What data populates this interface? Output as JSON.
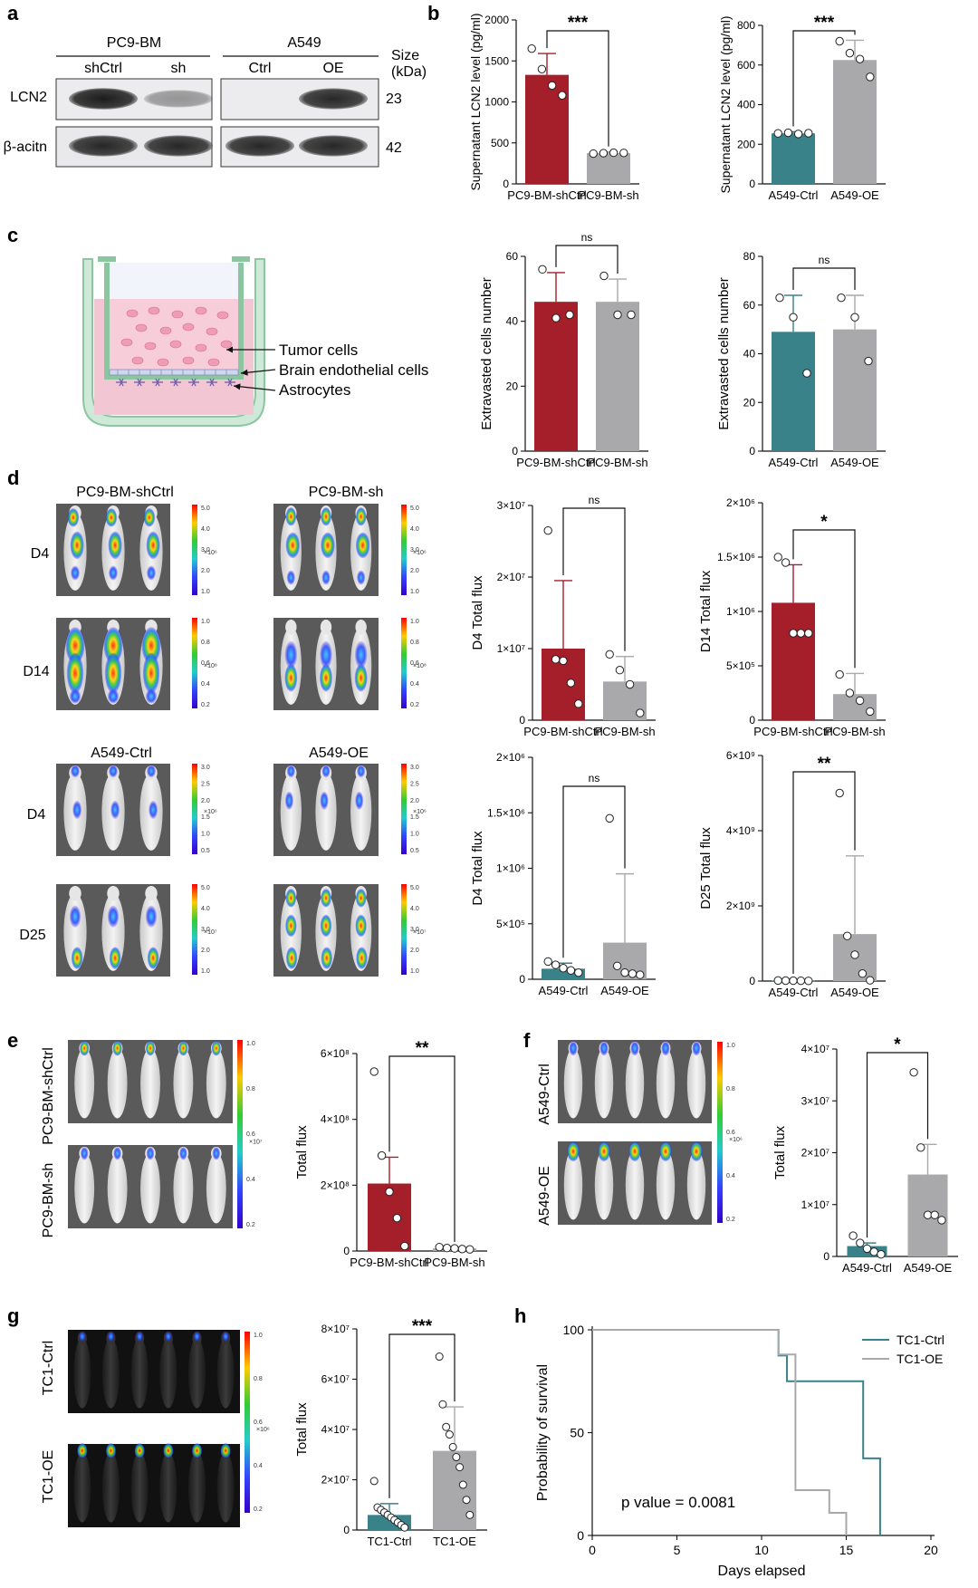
{
  "colors": {
    "red": "#a41f2a",
    "teal": "#3a828a",
    "gray": "#a9a9ab",
    "bluetint": "#dfe3f2",
    "pinktint": "#f2c9d6",
    "frame": "#9dd1b0"
  },
  "panels": {
    "a": {
      "letter": "a",
      "group1": "PC9-BM",
      "group2": "A549",
      "lanes": [
        "shCtrl",
        "sh",
        "Ctrl",
        "OE"
      ],
      "size_header": "Size\n(kDa)",
      "bands": [
        {
          "name": "LCN2",
          "size": "23",
          "intensity": [
            0.95,
            0.4,
            0.0,
            0.9
          ]
        },
        {
          "name": "β-acitn",
          "size": "42",
          "intensity": [
            0.9,
            0.9,
            0.9,
            0.9
          ]
        }
      ]
    },
    "b": {
      "letter": "b"
    },
    "c": {
      "letter": "c",
      "labels": [
        "Tumor cells",
        "Brain endothelial cells",
        "Astrocytes"
      ]
    },
    "d": {
      "letter": "d",
      "group_titles": [
        "PC9-BM-shCtrl",
        "PC9-BM-sh",
        "A549-Ctrl",
        "A549-OE"
      ],
      "row_labels": [
        "D4",
        "D14",
        "D4",
        "D25"
      ],
      "scales": [
        {
          "ticks": [
            "5.0",
            "4.0",
            "3.0",
            "2.0",
            "1.0"
          ],
          "unit": "×10⁶"
        },
        {
          "ticks": [
            "1.0",
            "0.8",
            "0.6",
            "0.4",
            "0.2"
          ],
          "unit": "×10⁸"
        },
        {
          "ticks": [
            "3.0",
            "2.5",
            "2.0",
            "1.5",
            "1.0",
            "0.5"
          ],
          "unit": "×10⁶"
        },
        {
          "ticks": [
            "5.0",
            "4.0",
            "3.0",
            "2.0",
            "1.0"
          ],
          "unit": "×10⁷"
        }
      ]
    },
    "e": {
      "letter": "e",
      "rows": [
        "PC9-BM-shCtrl",
        "PC9-BM-sh"
      ],
      "scale": {
        "ticks": [
          "1.0",
          "0.8",
          "0.6",
          "0.4",
          "0.2"
        ],
        "unit": "×10⁷"
      }
    },
    "f": {
      "letter": "f",
      "rows": [
        "A549-Ctrl",
        "A549-OE"
      ],
      "scale": {
        "ticks": [
          "1.0",
          "0.8",
          "0.6",
          "0.4",
          "0.2"
        ],
        "unit": "×10⁶"
      }
    },
    "g": {
      "letter": "g",
      "rows": [
        "TC1-Ctrl",
        "TC1-OE"
      ],
      "scale": {
        "ticks": [
          "1.0",
          "0.8",
          "0.6",
          "0.4",
          "0.2"
        ],
        "unit": "×10⁶"
      }
    },
    "h": {
      "letter": "h"
    }
  },
  "chart_data": [
    {
      "id": "b1",
      "type": "bar",
      "ylabel": "Supernatant LCN2 level (pg/ml)",
      "categories": [
        "PC9-BM-shCtrl",
        "PC9-BM-sh"
      ],
      "values": [
        1330,
        375
      ],
      "errors": [
        260,
        15
      ],
      "points": [
        [
          1650,
          1400,
          1200,
          1080
        ],
        [
          370,
          375,
          380,
          378
        ]
      ],
      "colors": [
        "red",
        "gray"
      ],
      "ylim": [
        0,
        2000
      ],
      "ticks": [
        0,
        500,
        1000,
        1500,
        2000
      ],
      "tick_labels": [
        "0",
        "500",
        "1000",
        "1500",
        "2000"
      ],
      "significance": "***"
    },
    {
      "id": "b2",
      "type": "bar",
      "ylabel": "Supernatant LCN2 level (pg/ml)",
      "categories": [
        "A549-Ctrl",
        "A549-OE"
      ],
      "values": [
        255,
        625
      ],
      "errors": [
        8,
        100
      ],
      "points": [
        [
          255,
          258,
          252,
          256
        ],
        [
          720,
          660,
          630,
          540
        ]
      ],
      "colors": [
        "teal",
        "gray"
      ],
      "ylim": [
        0,
        800
      ],
      "ticks": [
        0,
        200,
        400,
        600,
        800
      ],
      "tick_labels": [
        "0",
        "200",
        "400",
        "600",
        "800"
      ],
      "significance": "***"
    },
    {
      "id": "c1",
      "type": "bar",
      "ylabel": "Extravasted cells number",
      "categories": [
        "PC9-BM-shCtrl",
        "PC9-BM-sh"
      ],
      "values": [
        46,
        46
      ],
      "errors": [
        9,
        7
      ],
      "points": [
        [
          56,
          41,
          42
        ],
        [
          54,
          42,
          42
        ]
      ],
      "colors": [
        "red",
        "gray"
      ],
      "ylim": [
        0,
        60
      ],
      "ticks": [
        0,
        20,
        40,
        60
      ],
      "tick_labels": [
        "0",
        "20",
        "40",
        "60"
      ],
      "significance": "ns"
    },
    {
      "id": "c2",
      "type": "bar",
      "ylabel": "Extravasted cells number",
      "categories": [
        "A549-Ctrl",
        "A549-OE"
      ],
      "values": [
        49,
        50
      ],
      "errors": [
        15,
        14
      ],
      "points": [
        [
          63,
          55,
          32
        ],
        [
          63,
          55,
          37
        ]
      ],
      "colors": [
        "teal",
        "gray"
      ],
      "ylim": [
        0,
        80
      ],
      "ticks": [
        0,
        20,
        40,
        60,
        80
      ],
      "tick_labels": [
        "0",
        "20",
        "40",
        "60",
        "80"
      ],
      "significance": "ns"
    },
    {
      "id": "d1",
      "type": "bar",
      "ylabel": "D4 Total flux",
      "categories": [
        "PC9-BM-shCtrl",
        "PC9-BM-sh"
      ],
      "values": [
        10000000,
        5400000
      ],
      "errors": [
        9500000,
        3500000
      ],
      "points": [
        [
          26500000,
          8500000,
          8300000,
          5200000,
          2300000
        ],
        [
          9200000,
          7000000,
          5000000,
          1000000
        ]
      ],
      "colors": [
        "red",
        "gray"
      ],
      "ylim": [
        0,
        30000000
      ],
      "ticks": [
        0,
        10000000,
        20000000,
        30000000
      ],
      "tick_labels": [
        "0",
        "1×10⁷",
        "2×10⁷",
        "3×10⁷"
      ],
      "significance": "ns"
    },
    {
      "id": "d2",
      "type": "bar",
      "ylabel": "D14 Total flux",
      "categories": [
        "PC9-BM-shCtrl",
        "PC9-BM-sh"
      ],
      "values": [
        1080000,
        240000
      ],
      "errors": [
        350000,
        190000
      ],
      "points": [
        [
          1500000,
          1450000,
          800000,
          800000,
          800000
        ],
        [
          420000,
          250000,
          180000,
          80000
        ]
      ],
      "colors": [
        "red",
        "gray"
      ],
      "ylim": [
        0,
        2000000
      ],
      "ticks": [
        0,
        500000,
        1000000,
        1500000,
        2000000
      ],
      "tick_labels": [
        "0",
        "5×10⁵",
        "1×10⁶",
        "1.5×10⁶",
        "2×10⁶"
      ],
      "significance": "*"
    },
    {
      "id": "d3",
      "type": "bar",
      "ylabel": "D4 Total flux",
      "categories": [
        "A549-Ctrl",
        "A549-OE"
      ],
      "values": [
        95000,
        330000
      ],
      "errors": [
        50000,
        620000
      ],
      "points": [
        [
          160000,
          130000,
          100000,
          80000,
          60000
        ],
        [
          1450000,
          120000,
          60000,
          50000,
          40000
        ]
      ],
      "colors": [
        "teal",
        "gray"
      ],
      "ylim": [
        0,
        2000000
      ],
      "ticks": [
        0,
        500000,
        1000000,
        1500000,
        2000000
      ],
      "tick_labels": [
        "0",
        "5×10⁵",
        "1×10⁶",
        "1.5×10⁶",
        "2×10⁶"
      ],
      "significance": "ns"
    },
    {
      "id": "d4",
      "type": "bar",
      "ylabel": "D25 Total flux",
      "categories": [
        "A549-Ctrl",
        "A549-OE"
      ],
      "values": [
        15000000,
        1250000000
      ],
      "errors": [
        5000000,
        2080000000
      ],
      "points": [
        [
          15000000,
          12000000,
          10000000,
          8000000,
          5000000
        ],
        [
          5000000000,
          1200000000,
          700000000,
          200000000,
          20000000
        ]
      ],
      "colors": [
        "teal",
        "gray"
      ],
      "ylim": [
        0,
        6000000000
      ],
      "ticks": [
        0,
        2000000000,
        4000000000,
        6000000000
      ],
      "tick_labels": [
        "0",
        "2×10⁹",
        "4×10⁹",
        "6×10⁹"
      ],
      "significance": "**"
    },
    {
      "id": "e",
      "type": "bar",
      "ylabel": "Total flux",
      "categories": [
        "PC9-BM-shCtrl",
        "PC9-BM-sh"
      ],
      "values": [
        205000000,
        8000000
      ],
      "errors": [
        80000000,
        3000000
      ],
      "points": [
        [
          545000000,
          290000000,
          180000000,
          100000000,
          15000000
        ],
        [
          12000000,
          9000000,
          8000000,
          6000000,
          5000000
        ]
      ],
      "colors": [
        "red",
        "gray"
      ],
      "ylim": [
        0,
        600000000
      ],
      "ticks": [
        0,
        200000000,
        400000000,
        600000000
      ],
      "tick_labels": [
        "0",
        "2×10⁸",
        "4×10⁸",
        "6×10⁸"
      ],
      "significance": "**"
    },
    {
      "id": "f",
      "type": "bar",
      "ylabel": "Total flux",
      "categories": [
        "A549-Ctrl",
        "A549-OE"
      ],
      "values": [
        2000000,
        15800000
      ],
      "errors": [
        600000,
        5800000
      ],
      "points": [
        [
          4000000,
          2600000,
          1500000,
          900000,
          400000
        ],
        [
          35500000,
          21000000,
          8000000,
          8000000,
          7000000
        ]
      ],
      "colors": [
        "teal",
        "gray"
      ],
      "ylim": [
        0,
        40000000
      ],
      "ticks": [
        0,
        10000000,
        20000000,
        30000000,
        40000000
      ],
      "tick_labels": [
        "0",
        "1×10⁷",
        "2×10⁷",
        "3×10⁷",
        "4×10⁷"
      ],
      "significance": "*"
    },
    {
      "id": "g",
      "type": "bar",
      "ylabel": "Total flux",
      "categories": [
        "TC1-Ctrl",
        "TC1-OE"
      ],
      "values": [
        6000000,
        31500000
      ],
      "errors": [
        4500000,
        17500000
      ],
      "points": [
        [
          19500000,
          9000000,
          8000000,
          7000000,
          6000000,
          5000000,
          4000000,
          3000000,
          2000000,
          1000000
        ],
        [
          69000000,
          50000000,
          41000000,
          38000000,
          33000000,
          29000000,
          25000000,
          18000000,
          12000000,
          6000000
        ]
      ],
      "colors": [
        "teal",
        "gray"
      ],
      "ylim": [
        0,
        80000000
      ],
      "ticks": [
        0,
        20000000,
        40000000,
        60000000,
        80000000
      ],
      "tick_labels": [
        "0",
        "2×10⁷",
        "4×10⁷",
        "6×10⁷",
        "8×10⁷"
      ],
      "significance": "***"
    },
    {
      "id": "h",
      "type": "line",
      "title": "",
      "xlabel": "Days elapsed",
      "ylabel": "Probability of survival",
      "xlim": [
        0,
        20
      ],
      "ylim": [
        0,
        100
      ],
      "xticks": [
        0,
        5,
        10,
        15,
        20
      ],
      "yticks": [
        0,
        50,
        100
      ],
      "series": [
        {
          "name": "TC1-Ctrl",
          "color": "teal",
          "steps": [
            [
              0,
              100
            ],
            [
              11,
              100
            ],
            [
              11,
              87.5
            ],
            [
              11.5,
              87.5
            ],
            [
              11.5,
              75
            ],
            [
              16,
              75
            ],
            [
              16,
              37.5
            ],
            [
              17,
              37.5
            ],
            [
              17,
              0
            ]
          ]
        },
        {
          "name": "TC1-OE",
          "color": "gray",
          "steps": [
            [
              0,
              100
            ],
            [
              11,
              100
            ],
            [
              11,
              88
            ],
            [
              12,
              88
            ],
            [
              12,
              22
            ],
            [
              14,
              22
            ],
            [
              14,
              11
            ],
            [
              15,
              11
            ],
            [
              15,
              0
            ]
          ]
        }
      ],
      "annotation": "p value = 0.0081"
    }
  ]
}
